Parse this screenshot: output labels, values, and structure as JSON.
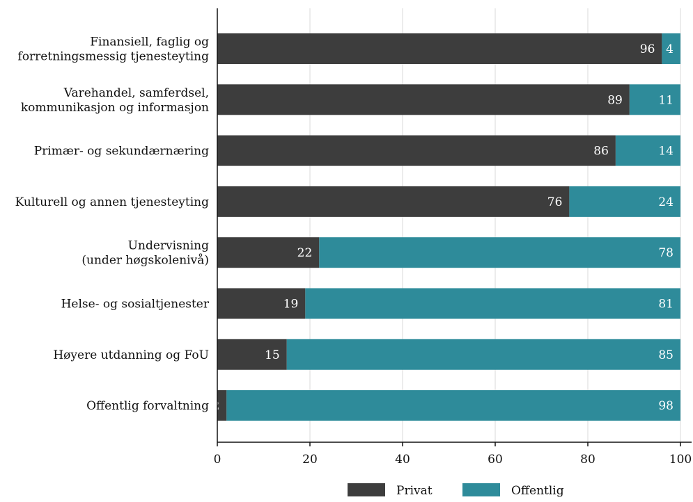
{
  "chart_data": {
    "type": "bar",
    "orientation": "horizontal",
    "stacked": true,
    "categories": [
      [
        "Finansiell, faglig og",
        "forretningsmessig tjenesteyting"
      ],
      [
        "Varehandel, samferdsel,",
        "kommunikasjon og informasjon"
      ],
      [
        "Primær- og sekundærnæring"
      ],
      [
        "Kulturell og annen tjenesteyting"
      ],
      [
        "Undervisning",
        "(under høgskolenivå)"
      ],
      [
        "Helse- og sosialtjenester"
      ],
      [
        "Høyere utdanning og FoU"
      ],
      [
        "Offentlig forvaltning"
      ]
    ],
    "series": [
      {
        "name": "Privat",
        "color": "#3d3d3d",
        "values": [
          96,
          89,
          86,
          76,
          22,
          19,
          15,
          2
        ]
      },
      {
        "name": "Offentlig",
        "color": "#2e8b9a",
        "values": [
          4,
          11,
          14,
          24,
          78,
          81,
          85,
          98
        ]
      }
    ],
    "xlim": [
      0,
      100
    ],
    "xticks": [
      0,
      20,
      40,
      60,
      80,
      100
    ],
    "grid": "vertical",
    "legend": "bottom"
  }
}
